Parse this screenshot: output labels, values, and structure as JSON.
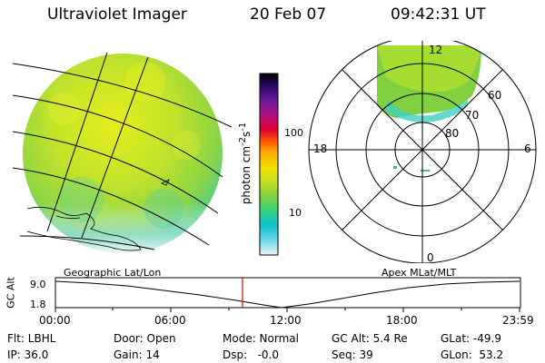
{
  "header": {
    "title": "Ultraviolet Imager",
    "date": "20 Feb 07",
    "time": "09:42:31 UT"
  },
  "colorbar": {
    "unit_html": "photon cm<sup>-2</sup>s<sup>-1</sup>",
    "ticks": [
      {
        "label": "100",
        "value": 100
      },
      {
        "label": "10",
        "value": 10
      }
    ],
    "colors": [
      "#000000",
      "#2a0a6a",
      "#6a1a9a",
      "#b01080",
      "#e00030",
      "#ff6000",
      "#ffb000",
      "#f0e000",
      "#c0e020",
      "#80d040",
      "#30d080",
      "#10c0d0",
      "#70d8e8",
      "#d8f0f0"
    ]
  },
  "polar": {
    "mlt_labels": {
      "top": "12",
      "left": "18",
      "right": "6",
      "bottom": "0"
    },
    "lat_labels": [
      "60",
      "70",
      "80"
    ]
  },
  "timeline": {
    "left_label": "Geographic Lat/Lon",
    "right_label": "Apex MLat/MLT",
    "y_axis_label": "GC Alt",
    "y_ticks": [
      "9.0",
      "1.8"
    ],
    "x_ticks": [
      "00:00",
      "06:00",
      "12:00",
      "18:00",
      "23:59"
    ],
    "cursor_time": "09:42:31"
  },
  "info": {
    "flt": "Flt: LBHL",
    "ip": "IP: 36.0",
    "door": "Door: Open",
    "gain": "Gain: 14",
    "mode": "Mode: Normal",
    "dsp": "Dsp:   -0.0",
    "gc_alt": "GC Alt: 5.4 Re",
    "seq": "Seq: 39",
    "glat": "GLat: -49.9",
    "glon": "GLon:  53.2"
  }
}
